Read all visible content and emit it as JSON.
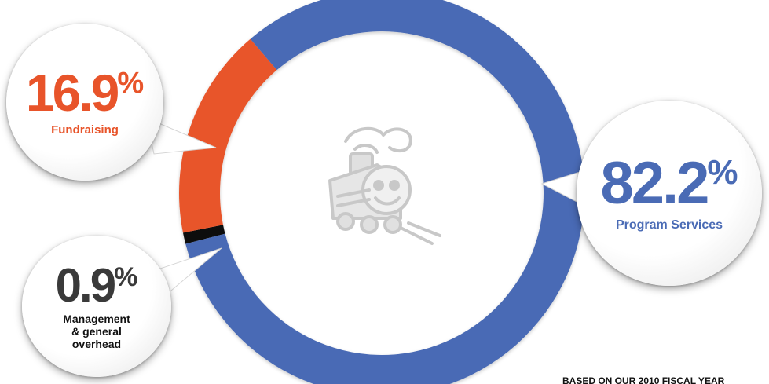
{
  "colors": {
    "program_services": "#4a6bb5",
    "fundraising": "#e8542a",
    "management": "#111111",
    "management_text": "#3a3a3a",
    "logo_gray": "#c8c8c8"
  },
  "chart_data": {
    "type": "pie",
    "donut": true,
    "slices": [
      {
        "name": "Program Services",
        "value": 82.2
      },
      {
        "name": "Fundraising",
        "value": 16.9
      },
      {
        "name": "Management & general overhead",
        "value": 0.9
      }
    ],
    "callouts": [
      {
        "percent": "82.2",
        "sign": "%",
        "label": "Program Services",
        "color": "#4a6bb5"
      },
      {
        "percent": "16.9",
        "sign": "%",
        "label": "Fundraising",
        "color": "#e8542a"
      },
      {
        "percent": "0.9",
        "sign": "%",
        "label_lines": [
          "Management",
          "& general",
          "overhead"
        ],
        "color": "#3a3a3a"
      }
    ]
  },
  "center_logo": {
    "icon": "smiling-train-icon"
  },
  "footnote": "BASED ON OUR 2010 FISCAL YEAR"
}
